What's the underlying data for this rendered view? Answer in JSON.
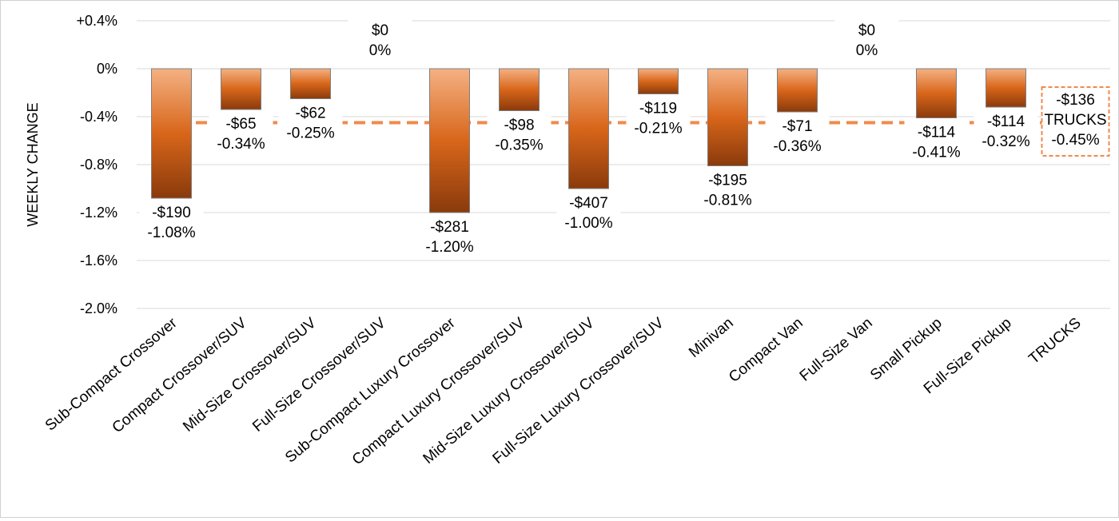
{
  "chart_data": {
    "type": "bar",
    "ylabel": "WEEKLY CHANGE",
    "ylim": [
      -2.0,
      0.4
    ],
    "yticks": [
      0.4,
      0,
      -0.4,
      -0.8,
      -1.2,
      -1.6,
      -2.0
    ],
    "ytick_labels": [
      "+0.4%",
      "0%",
      "-0.4%",
      "-0.8%",
      "-1.2%",
      "-1.6%",
      "-2.0%"
    ],
    "grid": true,
    "categories": [
      "Sub-Compact Crossover",
      "Compact Crossover/SUV",
      "Mid-Size Crossover/SUV",
      "Full-Size Crossover/SUV",
      "Sub-Compact Luxury Crossover",
      "Compact Luxury Crossover/SUV",
      "Mid-Size Luxury Crossover/SUV",
      "Full-Size Luxury Crossover/SUV",
      "Minivan",
      "Compact Van",
      "Full-Size Van",
      "Small Pickup",
      "Full-Size Pickup",
      "TRUCKS"
    ],
    "values": [
      -1.08,
      -0.34,
      -0.25,
      0,
      -1.2,
      -0.35,
      -1.0,
      -0.21,
      -0.81,
      -0.36,
      0,
      -0.41,
      -0.32,
      null
    ],
    "dollar_labels": [
      "-$190",
      "-$65",
      "-$62",
      "$0",
      "-$281",
      "-$98",
      "-$407",
      "-$119",
      "-$195",
      "-$71",
      "$0",
      "-$114",
      "-$114",
      "-$136"
    ],
    "percent_labels": [
      "-1.08%",
      "-0.34%",
      "-0.25%",
      "0%",
      "-1.20%",
      "-0.35%",
      "-1.00%",
      "-0.21%",
      "-0.81%",
      "-0.36%",
      "0%",
      "-0.41%",
      "-0.32%",
      "-0.45%"
    ],
    "average": {
      "value": -0.45,
      "dollar_label": "-$136",
      "name_label": "TRUCKS",
      "percent_label": "-0.45%"
    },
    "colors": {
      "bar_top": "#f4b183",
      "bar_mid": "#d8661a",
      "bar_bottom": "#8a3a0c",
      "bar_stroke": "#7f7f7f",
      "average_line": "#f08a4b",
      "grid": "#d9d9d9"
    }
  }
}
